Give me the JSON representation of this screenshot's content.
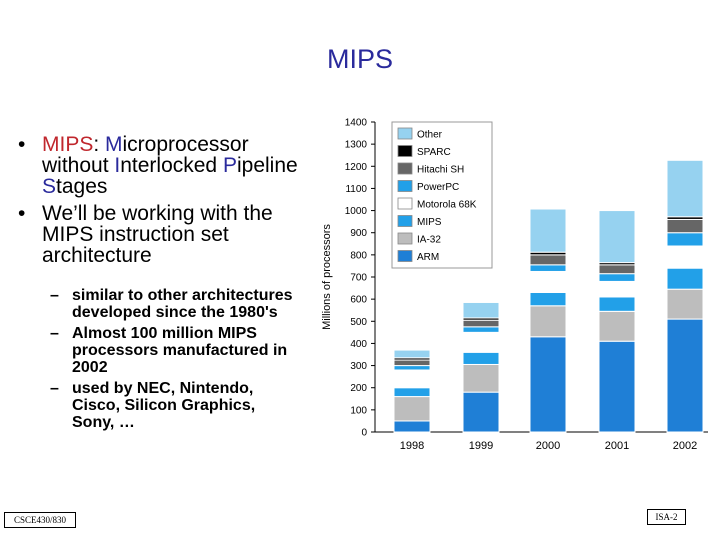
{
  "slide": {
    "title": "MIPS",
    "bullet1": {
      "mips": "MIPS",
      "colon": ": ",
      "m": "M",
      "icroprocessor": "icroprocessor",
      "without": "without ",
      "i": "I",
      "nterlocked": "nterlocked",
      "p": "P",
      "ipeline": "ipeline ",
      "s": "S",
      "tages": "tages"
    },
    "bullet2": "We’ll be working with the MIPS instruction set architecture",
    "subbullets": [
      "similar to other architectures developed since the 1980's",
      "Almost 100 million MIPS processors manufactured in 2002",
      "used by NEC, Nintendo, Cisco, Silicon Graphics, Sony, …"
    ],
    "footer_left": "CSCE430/830",
    "footer_right": "ISA-2",
    "bullet_glyph": "•",
    "dash_glyph": "–"
  },
  "chart_data": {
    "type": "bar",
    "stacked": true,
    "categories": [
      "1998",
      "1999",
      "2000",
      "2001",
      "2002"
    ],
    "ylabel": "Millions of processors",
    "ylim": [
      0,
      1400
    ],
    "yticks": [
      0,
      100,
      200,
      300,
      400,
      500,
      600,
      700,
      800,
      900,
      1000,
      1100,
      1200,
      1300,
      1400
    ],
    "series": [
      {
        "name": "ARM",
        "color": "#1f7fd6",
        "values": [
          50,
          180,
          430,
          410,
          510
        ]
      },
      {
        "name": "IA-32",
        "color": "#bdbdbd",
        "values": [
          110,
          125,
          140,
          135,
          135
        ]
      },
      {
        "name": "MIPS",
        "color": "#22a0e8",
        "values": [
          40,
          55,
          60,
          65,
          95
        ]
      },
      {
        "name": "Motorola 68K",
        "color": "#ffffff",
        "values": [
          80,
          90,
          95,
          70,
          100
        ]
      },
      {
        "name": "PowerPC",
        "color": "#22a0e8",
        "values": [
          20,
          25,
          30,
          35,
          60
        ]
      },
      {
        "name": "Hitachi SH",
        "color": "#666666",
        "values": [
          25,
          30,
          45,
          40,
          60
        ]
      },
      {
        "name": "SPARC",
        "color": "#000000",
        "values": [
          10,
          10,
          12,
          10,
          12
        ]
      },
      {
        "name": "Other",
        "color": "#96d2f0",
        "values": [
          35,
          70,
          195,
          235,
          255
        ]
      }
    ],
    "legend_order": [
      "Other",
      "SPARC",
      "Hitachi SH",
      "PowerPC",
      "Motorola 68K",
      "MIPS",
      "IA-32",
      "ARM"
    ],
    "legend_position": "top-left"
  }
}
